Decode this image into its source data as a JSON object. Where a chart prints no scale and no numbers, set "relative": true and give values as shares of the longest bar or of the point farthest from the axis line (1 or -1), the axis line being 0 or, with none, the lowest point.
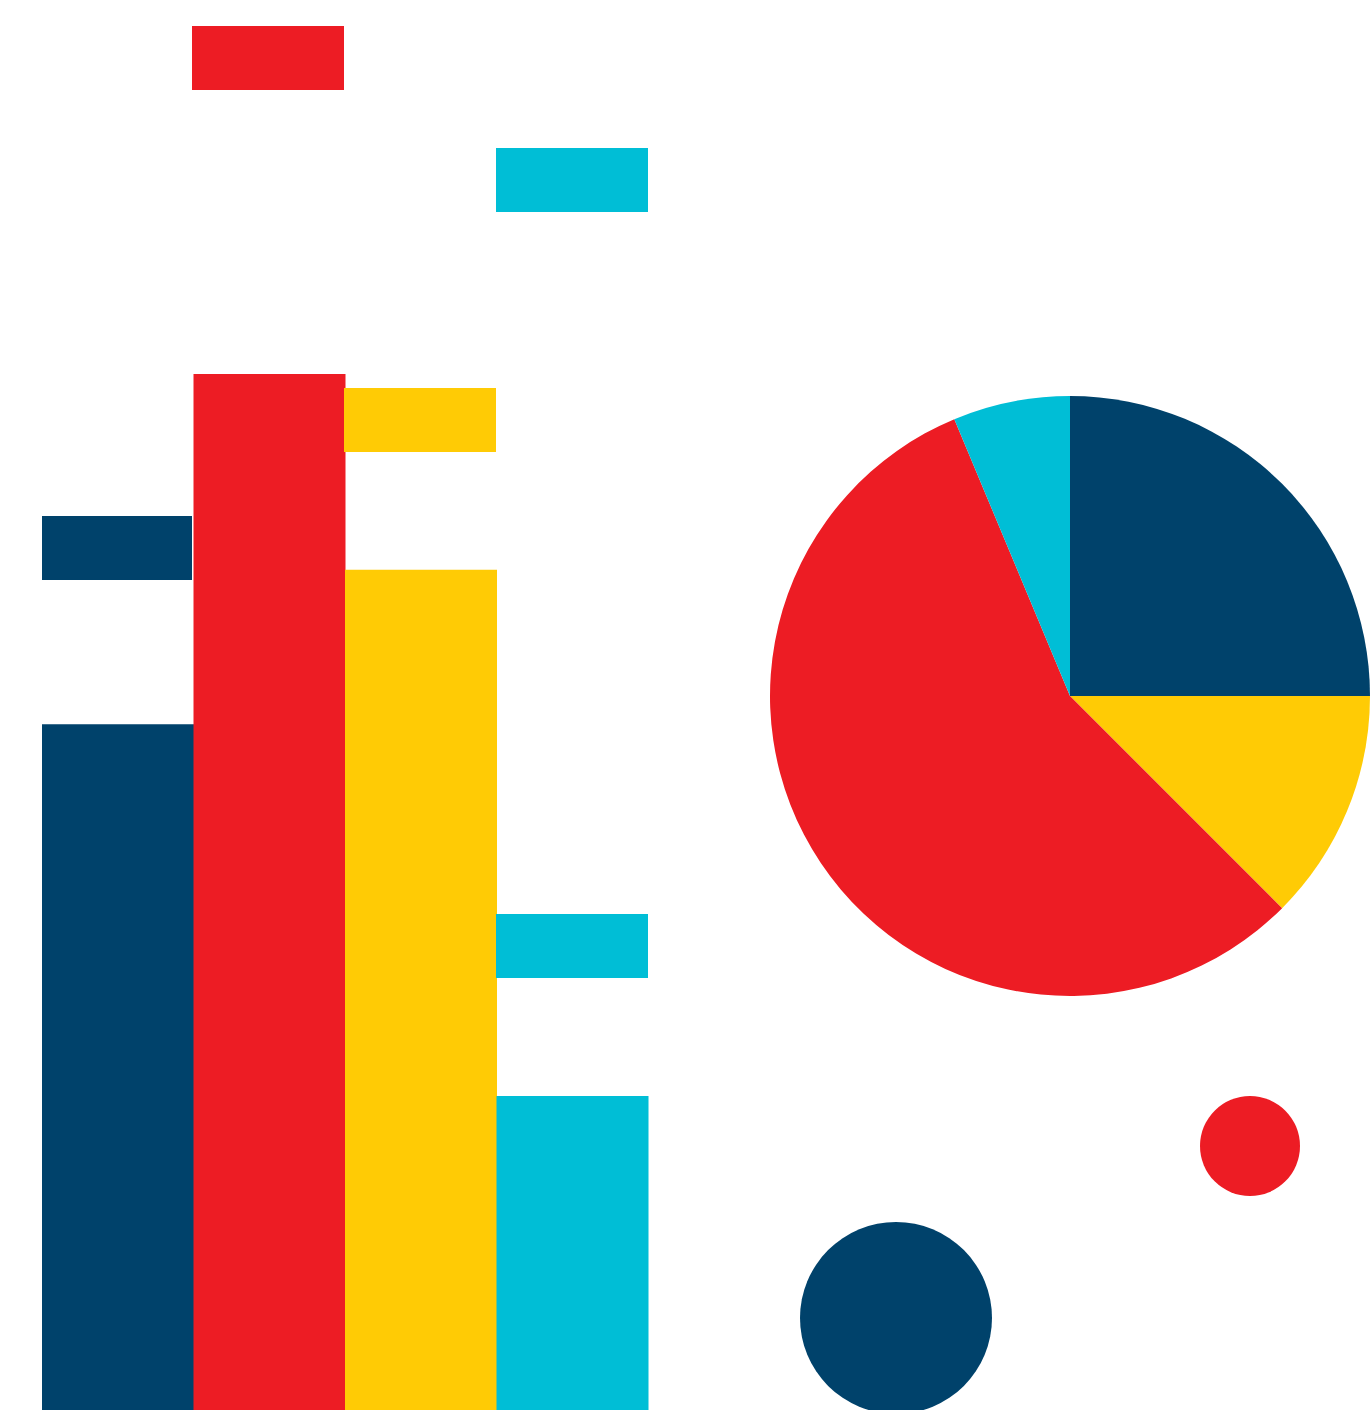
{
  "chart_data": [
    {
      "type": "bar",
      "relative": true,
      "categories": [
        null,
        null,
        null,
        null
      ],
      "values": [
        0.662,
        1,
        0.811,
        0.303
      ],
      "colors": [
        "#00426b",
        "#ed1c24",
        "#ffcb05",
        "#00bed6"
      ]
    },
    {
      "type": "pie",
      "categories": [
        null,
        null,
        null,
        null
      ],
      "values": [
        25,
        12.5,
        56.2,
        6.3
      ],
      "colors": [
        "#00426b",
        "#ffcb05",
        "#ed1c24",
        "#00bed6"
      ]
    }
  ]
}
